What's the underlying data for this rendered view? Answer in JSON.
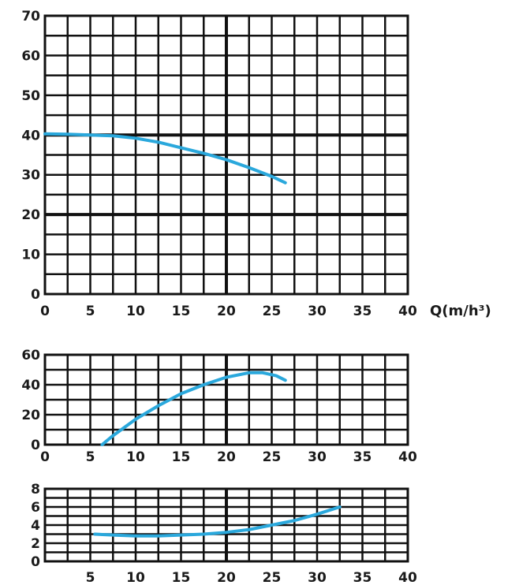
{
  "chart_data": [
    {
      "type": "line",
      "title": "",
      "xlabel": "Q(m/h³)",
      "ylabel": "",
      "xlim": [
        0,
        40
      ],
      "ylim": [
        0,
        70
      ],
      "x_ticks": [
        "0",
        "5",
        "10",
        "15",
        "20",
        "25",
        "30",
        "35",
        "40"
      ],
      "y_ticks": [
        "0",
        "10",
        "20",
        "30",
        "40",
        "50",
        "60",
        "70"
      ],
      "grid": true,
      "series": [
        {
          "color": "#2aa8dc",
          "x": [
            0,
            2.5,
            5,
            7.5,
            10,
            12.5,
            15,
            17.5,
            20,
            22.5,
            25,
            26.5
          ],
          "y": [
            40.3,
            40.2,
            40.0,
            39.8,
            39.2,
            38.2,
            36.8,
            35.4,
            33.8,
            31.8,
            29.6,
            28.0
          ]
        }
      ]
    },
    {
      "type": "line",
      "title": "",
      "xlabel": "",
      "ylabel": "",
      "xlim": [
        0,
        40
      ],
      "ylim": [
        0,
        60
      ],
      "x_ticks": [
        "0",
        "5",
        "10",
        "15",
        "20",
        "25",
        "30",
        "35",
        "40"
      ],
      "y_ticks": [
        "0",
        "20",
        "40",
        "60"
      ],
      "grid": true,
      "series": [
        {
          "color": "#2aa8dc",
          "x": [
            6.3,
            7.5,
            10,
            12.5,
            15,
            17.5,
            20,
            22.5,
            24,
            25.5,
            26.5
          ],
          "y": [
            0,
            6,
            17,
            26,
            34,
            40,
            45,
            48,
            48,
            46,
            43
          ]
        }
      ]
    },
    {
      "type": "line",
      "title": "",
      "xlabel": "",
      "ylabel": "",
      "xlim": [
        0,
        40
      ],
      "ylim": [
        0,
        8
      ],
      "x_ticks": [
        "5",
        "10",
        "15",
        "20",
        "25",
        "30",
        "35",
        "40"
      ],
      "y_ticks": [
        "0",
        "2",
        "4",
        "6",
        "8"
      ],
      "grid": true,
      "series": [
        {
          "color": "#2aa8dc",
          "x": [
            5.5,
            7.5,
            10,
            12.5,
            15,
            17.5,
            20,
            22.5,
            25,
            27.5,
            30,
            32.5
          ],
          "y": [
            3.0,
            2.9,
            2.8,
            2.8,
            2.9,
            3.0,
            3.2,
            3.5,
            4.0,
            4.5,
            5.2,
            6.0
          ]
        }
      ]
    }
  ]
}
